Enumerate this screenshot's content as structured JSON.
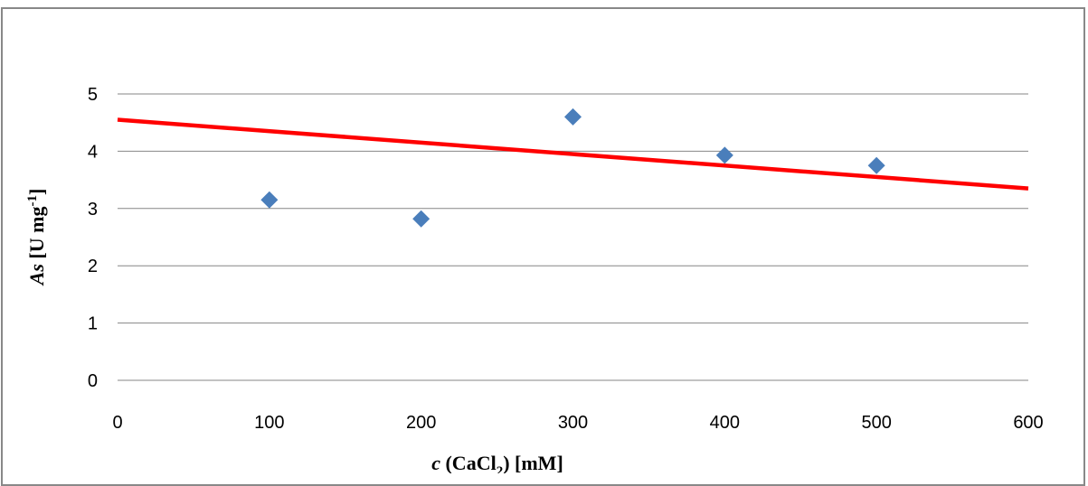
{
  "chart_data": {
    "type": "scatter",
    "xlabel": {
      "var": "c",
      "pre": " (CaCl",
      "sub": "2",
      "post": ") [mM]"
    },
    "ylabel": {
      "var": "As",
      "pre": " [U mg",
      "sup": "-1",
      "post": "]"
    },
    "xlim": [
      0,
      600
    ],
    "ylim": [
      0,
      5
    ],
    "xticks": [
      0,
      100,
      200,
      300,
      400,
      500,
      600
    ],
    "yticks": [
      0,
      1,
      2,
      3,
      4,
      5
    ],
    "grid": true,
    "series": [
      {
        "x": [
          100,
          200,
          300,
          400,
          500
        ],
        "y": [
          3.15,
          2.82,
          4.6,
          3.93,
          3.75
        ],
        "color": "#4a7ebb",
        "marker": "diamond"
      }
    ],
    "trendline": {
      "type": "linear",
      "x": [
        0,
        600
      ],
      "y": [
        4.55,
        3.35
      ],
      "color": "#ff0000"
    }
  }
}
